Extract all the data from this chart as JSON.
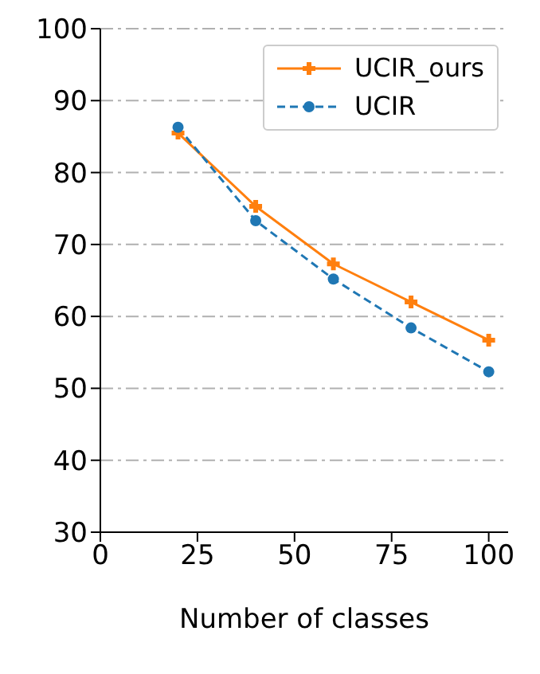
{
  "chart_data": {
    "type": "line",
    "xlabel": "Number of classes",
    "x": [
      20,
      40,
      60,
      80,
      100
    ],
    "series": [
      {
        "name": "UCIR_ours",
        "color": "#ff7f0e",
        "values": [
          85.5,
          75.3,
          67.3,
          62.0,
          56.7
        ],
        "marker": "cross",
        "line_style": "solid"
      },
      {
        "name": "UCIR",
        "color": "#1f77b4",
        "values": [
          86.3,
          73.3,
          65.2,
          58.4,
          52.3
        ],
        "marker": "circle",
        "line_style": "dashed"
      }
    ],
    "xlim": [
      0,
      105
    ],
    "xticks": [
      0,
      25,
      50,
      75,
      100
    ],
    "ylim": [
      30,
      100
    ],
    "yticks": [
      30,
      40,
      50,
      60,
      70,
      80,
      90,
      100
    ],
    "grid": "y",
    "legend": "top right"
  }
}
